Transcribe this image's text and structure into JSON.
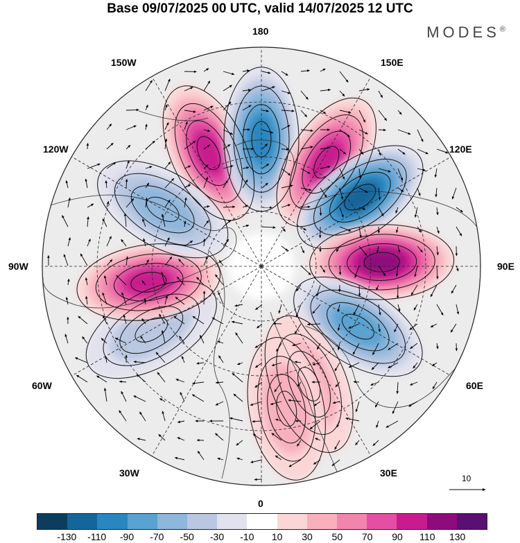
{
  "title": "Base 09/07/2025 00 UTC, valid 14/07/2025 12 UTC",
  "brand": "MODES",
  "brand_mark": "®",
  "longitude_labels": {
    "n": "180",
    "s": "0",
    "w": "90W",
    "e": "90E",
    "nw150": "150W",
    "nw120": "120W",
    "ne150": "150E",
    "ne120": "120E",
    "sw60": "60W",
    "sw30": "30W",
    "se60": "60E",
    "se30": "30E"
  },
  "reference_vector": "10",
  "colorbar": {
    "colors": [
      "#0c3c5e",
      "#15659a",
      "#2a86bf",
      "#5aa2d0",
      "#8fb6db",
      "#b9c7e1",
      "#e2e2ef",
      "#ffffff",
      "#fbd6d6",
      "#f8b0bd",
      "#f285ae",
      "#e350a3",
      "#c81c8e",
      "#8e0b7c",
      "#5a0f73"
    ],
    "ticks": [
      "-130",
      "-110",
      "-90",
      "-70",
      "-50",
      "-30",
      "-10",
      "10",
      "30",
      "50",
      "70",
      "90",
      "110",
      "130"
    ]
  },
  "anomalies": [
    {
      "lon": 205,
      "r": 0.57,
      "value": 100
    },
    {
      "lon": 180,
      "r": 0.58,
      "value": -90
    },
    {
      "lon": 148,
      "r": 0.56,
      "value": 90
    },
    {
      "lon": 125,
      "r": 0.55,
      "value": -120
    },
    {
      "lon": 92,
      "r": 0.55,
      "value": 110
    },
    {
      "lon": 58,
      "r": 0.52,
      "value": -80
    },
    {
      "lon": 22,
      "r": 0.58,
      "value": 40
    },
    {
      "lon": 10,
      "r": 0.66,
      "value": 30
    },
    {
      "lon": 300,
      "r": 0.58,
      "value": -40
    },
    {
      "lon": 278,
      "r": 0.52,
      "value": 90
    },
    {
      "lon": 240,
      "r": 0.52,
      "value": -60
    }
  ]
}
